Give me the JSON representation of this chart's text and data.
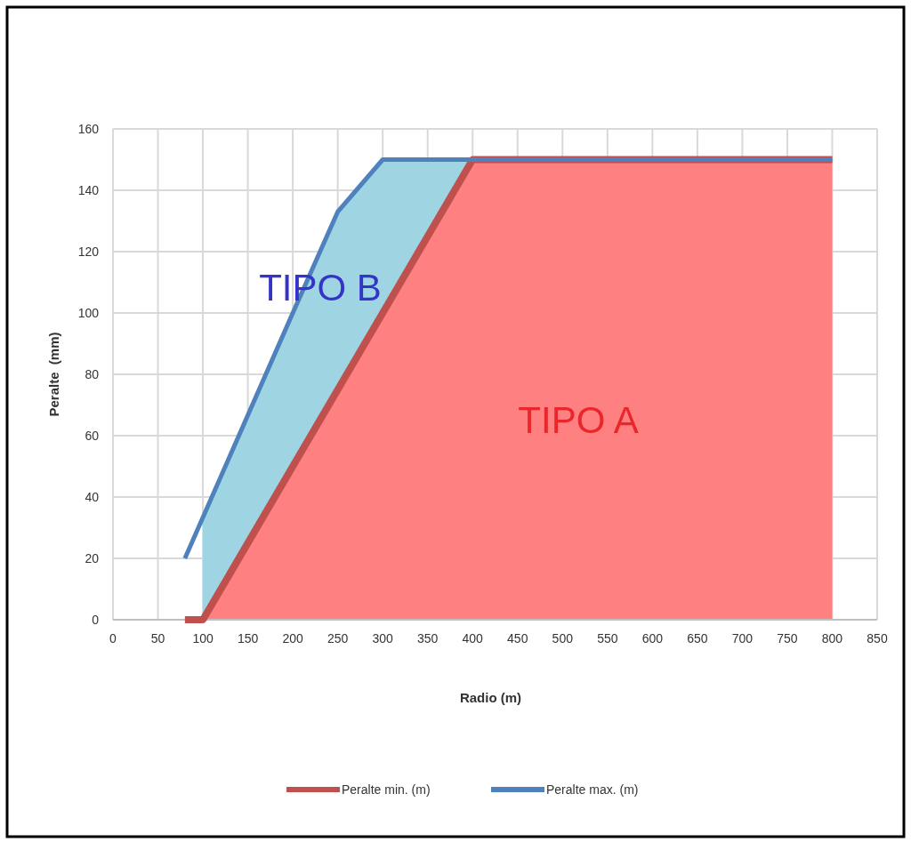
{
  "chart_data": {
    "type": "line",
    "xlabel": "Radio (m)",
    "ylabel": "Peralte  (mm)",
    "xlim": [
      0,
      850
    ],
    "xticks": [
      0,
      50,
      100,
      150,
      200,
      250,
      300,
      350,
      400,
      450,
      500,
      550,
      600,
      650,
      700,
      750,
      800,
      850
    ],
    "ylim": [
      0,
      160
    ],
    "yticks": [
      0,
      20,
      40,
      60,
      80,
      100,
      120,
      140,
      160
    ],
    "grid": true,
    "legend": "bottom",
    "marker": "none",
    "line_style": "solid",
    "series": [
      {
        "type": "area",
        "color": "#9fd5e3",
        "x": [
          100,
          200,
          250,
          300,
          400
        ],
        "values": [
          33,
          100,
          133,
          150,
          150
        ]
      },
      {
        "type": "area",
        "color": "#ff8080",
        "x": [
          100,
          400,
          800
        ],
        "values": [
          0,
          150,
          150
        ]
      },
      {
        "name": "Peralte min. (m)",
        "color": "#c0504d",
        "x": [
          80,
          100,
          400,
          800
        ],
        "values": [
          0,
          0,
          150,
          150
        ]
      },
      {
        "name": "Peralte max. (m)",
        "color": "#4f81bd",
        "x": [
          80,
          200,
          250,
          300,
          800
        ],
        "values": [
          20,
          100,
          133,
          150,
          150
        ]
      }
    ],
    "annotations": [
      "TIPO A",
      "TIPO B"
    ]
  }
}
